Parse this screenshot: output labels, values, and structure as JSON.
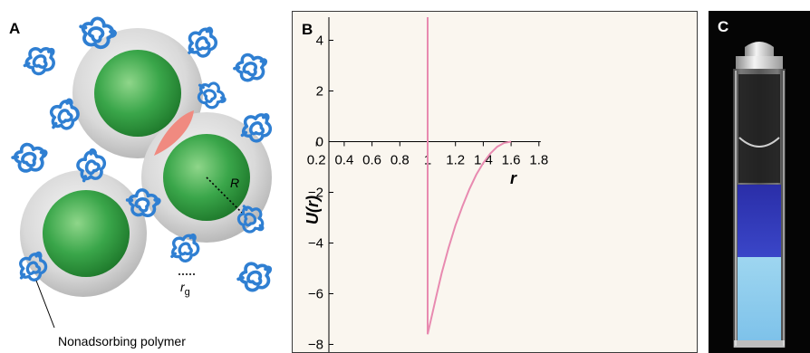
{
  "panels": {
    "a": {
      "letter": "A",
      "radius_label": "R",
      "rg_label_main": "r",
      "rg_label_sub": "g",
      "polymer_caption": "Nonadsorbing polymer",
      "colors": {
        "core": "#3aa64a",
        "shell": "#d6d6d6",
        "overlap": "#f08a80",
        "polymer": "#2f7fd2"
      }
    },
    "b": {
      "letter": "B",
      "chart_data": {
        "type": "line",
        "title": "",
        "xlabel": "r",
        "ylabel": "U(r)",
        "xlim": [
          0,
          1.8
        ],
        "ylim": [
          -10,
          5
        ],
        "xticks": [
          "0.2",
          "0.4",
          "0.6",
          "0.8",
          "1",
          "1.2",
          "1.4",
          "1.6",
          "1.8"
        ],
        "yticks": [
          "4",
          "2",
          "0",
          "−2",
          "−4",
          "−6",
          "−8"
        ],
        "grid": false,
        "line_color": "#e88ab0",
        "series": [
          {
            "x": [
              1.0,
              1.0,
              1.06,
              1.1,
              1.15,
              1.2,
              1.25,
              1.3,
              1.35,
              1.4,
              1.45,
              1.5,
              1.55,
              1.6
            ],
            "y": [
              5.0,
              -7.6,
              -6.15,
              -5.2,
              -4.2,
              -3.3,
              -2.55,
              -1.87,
              -1.3,
              -0.84,
              -0.47,
              -0.2,
              -0.05,
              0.0
            ]
          }
        ]
      }
    },
    "c": {
      "letter": "C"
    }
  }
}
